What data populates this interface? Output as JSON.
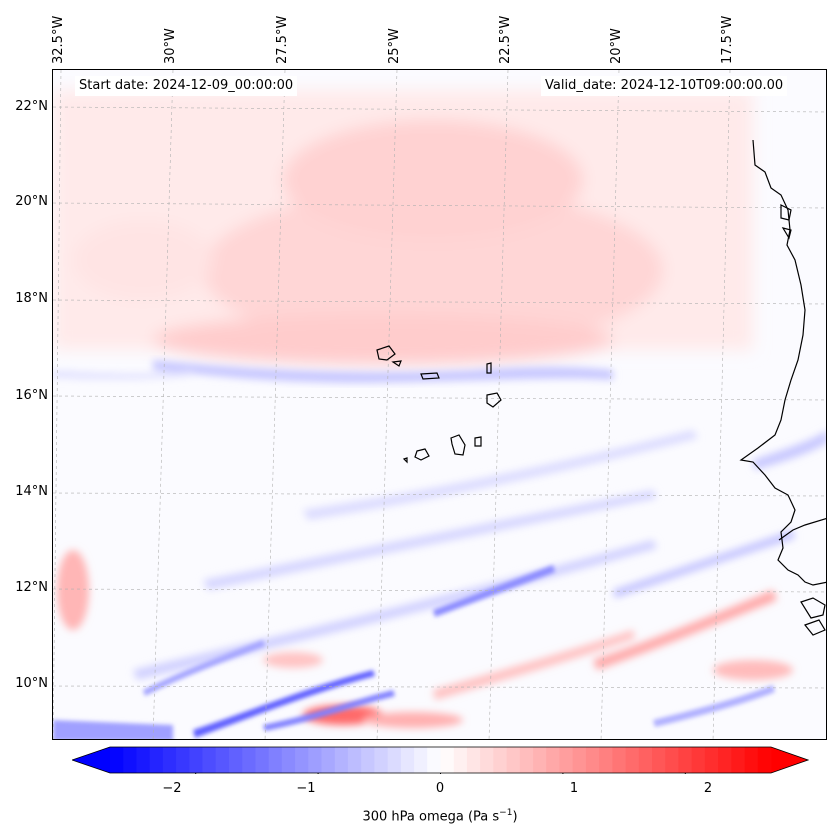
{
  "header": {
    "start_date": "Start date: 2024-12-09_00:00:00",
    "valid_date": "Valid_date: 2024-12-10T09:00:00.00"
  },
  "axes": {
    "longitude_labels": [
      "32.5°W",
      "30°W",
      "27.5°W",
      "25°W",
      "22.5°W",
      "20°W",
      "17.5°W"
    ],
    "latitude_labels": [
      "22°N",
      "20°N",
      "18°N",
      "16°N",
      "14°N",
      "12°N",
      "10°N"
    ]
  },
  "colorbar": {
    "ticks": [
      "−2",
      "−1",
      "0",
      "1",
      "2"
    ],
    "range": [
      -2.7,
      2.7
    ],
    "label_prefix": "300 hPa omega (Pa s",
    "label_exponent": "−1",
    "label_suffix": ")",
    "colors": {
      "negative": "#0000ff",
      "zero": "#ffffff",
      "positive": "#ff0000"
    }
  },
  "colors": {
    "coastline": "#000000",
    "gridline": "#b0b0b0",
    "background": "#ffffff"
  }
}
